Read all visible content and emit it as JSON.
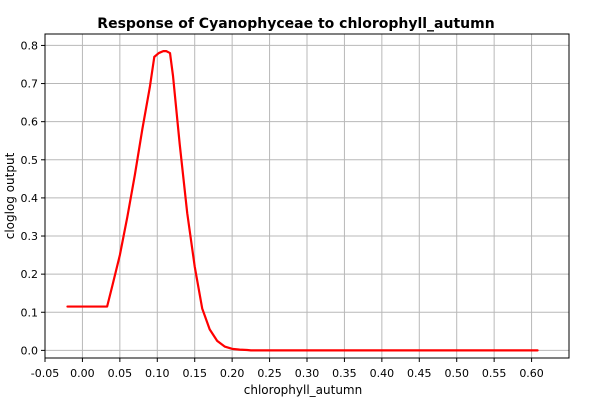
{
  "chart_data": {
    "type": "line",
    "title": "Response of Cyanophyceae to chlorophyll_autumn",
    "xlabel": "chlorophyll_autumn",
    "ylabel": "cloglog output",
    "xlim": [
      -0.05,
      0.65
    ],
    "ylim": [
      -0.02,
      0.83
    ],
    "xticks": [
      -0.05,
      0.0,
      0.05,
      0.1,
      0.15,
      0.2,
      0.25,
      0.3,
      0.35,
      0.4,
      0.45,
      0.5,
      0.55,
      0.6
    ],
    "xtick_labels": [
      "-0.05",
      "0.00",
      "0.05",
      "0.10",
      "0.15",
      "0.20",
      "0.25",
      "0.30",
      "0.35",
      "0.40",
      "0.45",
      "0.50",
      "0.55",
      "0.60"
    ],
    "yticks": [
      0.0,
      0.1,
      0.2,
      0.3,
      0.4,
      0.5,
      0.6,
      0.7,
      0.8
    ],
    "ytick_labels": [
      "0.0",
      "0.1",
      "0.2",
      "0.3",
      "0.4",
      "0.5",
      "0.6",
      "0.7",
      "0.8"
    ],
    "grid": true,
    "color": "#ff0000",
    "series": [
      {
        "x": [
          -0.02,
          0.0,
          0.02,
          0.033,
          0.04,
          0.05,
          0.055,
          0.06,
          0.07,
          0.08,
          0.09,
          0.096,
          0.102,
          0.108,
          0.112,
          0.117,
          0.121,
          0.13,
          0.14,
          0.15,
          0.16,
          0.17,
          0.18,
          0.19,
          0.2,
          0.21,
          0.22,
          0.225,
          0.25,
          0.3,
          0.35,
          0.4,
          0.45,
          0.5,
          0.55,
          0.6,
          0.608
        ],
        "y": [
          0.115,
          0.115,
          0.115,
          0.115,
          0.17,
          0.25,
          0.3,
          0.35,
          0.46,
          0.58,
          0.69,
          0.77,
          0.78,
          0.785,
          0.785,
          0.78,
          0.72,
          0.54,
          0.36,
          0.22,
          0.11,
          0.055,
          0.025,
          0.01,
          0.004,
          0.002,
          0.001,
          0.0,
          0.0,
          0.0,
          0.0,
          0.0,
          0.0,
          0.0,
          0.0,
          0.0,
          0.0
        ]
      }
    ]
  }
}
